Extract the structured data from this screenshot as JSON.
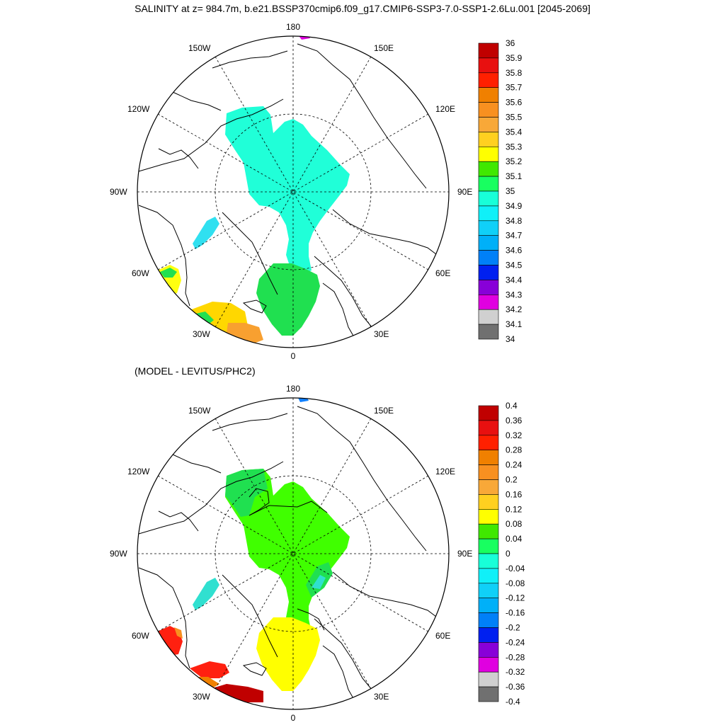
{
  "title": "SALINITY at z= 984.7m, b.e21.BSSP370cmip6.f09_g17.CMIP6-SSP3-7.0-SSP1-2.6Lu.001 [2045-2069]",
  "diff_title": "(MODEL - LEVITUS/PHC2)",
  "lon_labels": [
    "180",
    "150E",
    "120E",
    "90E",
    "60E",
    "30E",
    "0",
    "30W",
    "60W",
    "90W",
    "120W",
    "150W"
  ],
  "colors": {
    "land_outline": "#000000",
    "grid": "#000000",
    "top_fill_arctic": "#20ffd8",
    "top_fill_norwegian": "#20e050",
    "top_fill_atlantic_warm": "#ffd700",
    "top_fill_atlantic_orange": "#f8a030",
    "top_fill_baffin": "#30e0f0",
    "top_fill_bering": "#e000e0",
    "bottom_fill_arctic": "#40ff00",
    "bottom_fill_norwegian": "#ffff00",
    "bottom_fill_atlantic": "#ff2010",
    "bottom_fill_atlantic_dark": "#c00000",
    "bottom_fill_baffin": "#30e0d0",
    "bottom_fill_bering": "#1080ff"
  },
  "top_colorbar": {
    "labels": [
      "36",
      "35.9",
      "35.8",
      "35.7",
      "35.6",
      "35.5",
      "35.4",
      "35.3",
      "35.2",
      "35.1",
      "35",
      "34.9",
      "34.8",
      "34.7",
      "34.6",
      "34.5",
      "34.4",
      "34.3",
      "34.2",
      "34.1",
      "34"
    ],
    "colors": [
      "#c00000",
      "#e81010",
      "#ff2000",
      "#f08000",
      "#f89020",
      "#f8a838",
      "#ffd020",
      "#ffff00",
      "#40e800",
      "#18ff60",
      "#18ffd8",
      "#10f0f8",
      "#10d0f8",
      "#00b0f8",
      "#0080f8",
      "#0020f0",
      "#8800d8",
      "#e000e0",
      "#d0d0d0",
      "#707070"
    ]
  },
  "bottom_colorbar": {
    "labels": [
      "0.4",
      "0.36",
      "0.32",
      "0.28",
      "0.24",
      "0.2",
      "0.16",
      "0.12",
      "0.08",
      "0.04",
      "0",
      "-0.04",
      "-0.08",
      "-0.12",
      "-0.16",
      "-0.2",
      "-0.24",
      "-0.28",
      "-0.32",
      "-0.36",
      "-0.4"
    ],
    "colors": [
      "#c00000",
      "#e81010",
      "#ff2000",
      "#f08000",
      "#f89020",
      "#f8a838",
      "#ffd020",
      "#ffff00",
      "#40e800",
      "#18ff60",
      "#18ffd8",
      "#10f0f8",
      "#10d0f8",
      "#00b0f8",
      "#0080f8",
      "#0020f0",
      "#8800d8",
      "#e000e0",
      "#d0d0d0",
      "#707070"
    ]
  }
}
